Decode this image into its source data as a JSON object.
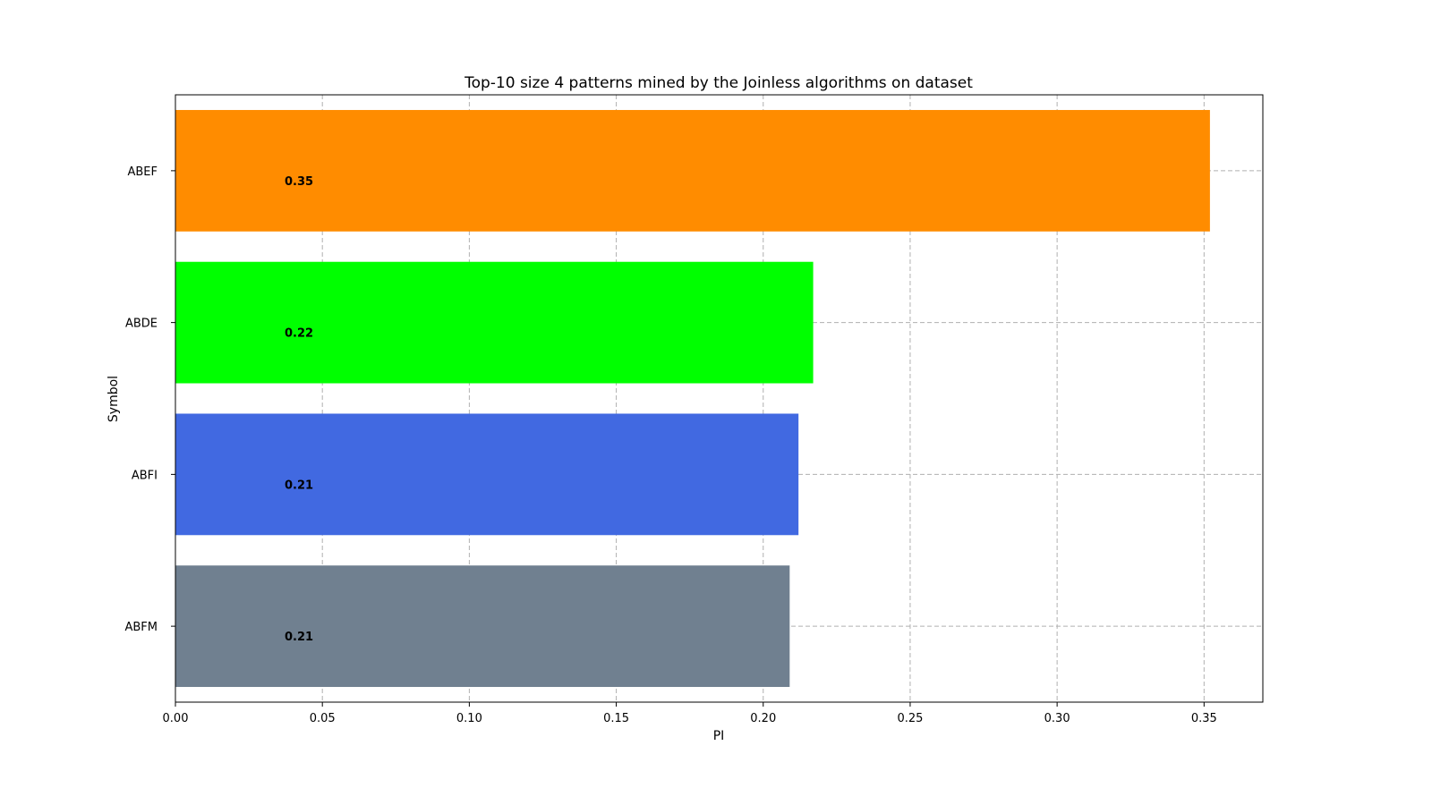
{
  "chart_data": {
    "type": "bar",
    "orientation": "horizontal",
    "title": "Top-10 size 4 patterns mined by the Joinless algorithms on dataset",
    "xlabel": "PI",
    "ylabel": "Symbol",
    "xlim": [
      0,
      0.37
    ],
    "xticks": [
      "0.00",
      "0.05",
      "0.10",
      "0.15",
      "0.20",
      "0.25",
      "0.30",
      "0.35"
    ],
    "xtick_values": [
      0,
      0.05,
      0.1,
      0.15,
      0.2,
      0.25,
      0.3,
      0.35
    ],
    "grid": true,
    "categories": [
      "ABEF",
      "ABDE",
      "ABFI",
      "ABFM"
    ],
    "values": [
      0.352,
      0.217,
      0.212,
      0.209
    ],
    "value_labels": [
      "0.35",
      "0.22",
      "0.21",
      "0.21"
    ],
    "colors": [
      "#ff8c00",
      "#00ff00",
      "#4169e1",
      "#708090"
    ]
  }
}
